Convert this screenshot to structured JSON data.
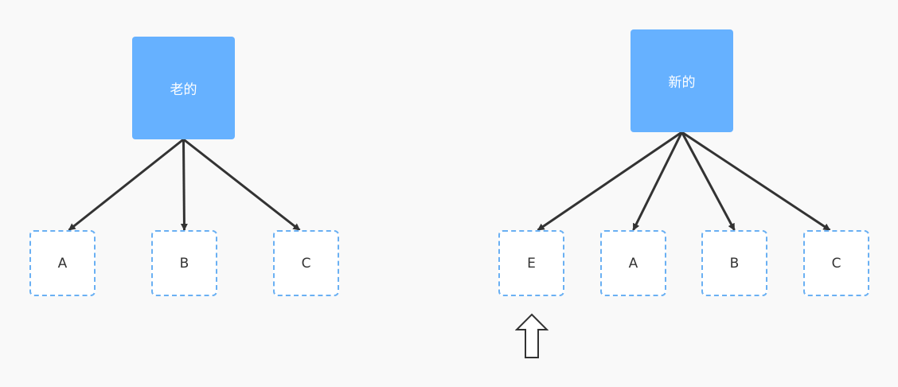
{
  "colors": {
    "parent_fill": "#66b1ff",
    "child_border": "#6ab0f3",
    "edge": "#333333",
    "background": "#f9f9f9"
  },
  "old_tree": {
    "root_label": "老的",
    "children": [
      "A",
      "B",
      "C"
    ]
  },
  "new_tree": {
    "root_label": "新的",
    "children": [
      "E",
      "A",
      "B",
      "C"
    ]
  },
  "indicator": {
    "icon": "up-arrow-outline-icon",
    "points_to": "E"
  }
}
